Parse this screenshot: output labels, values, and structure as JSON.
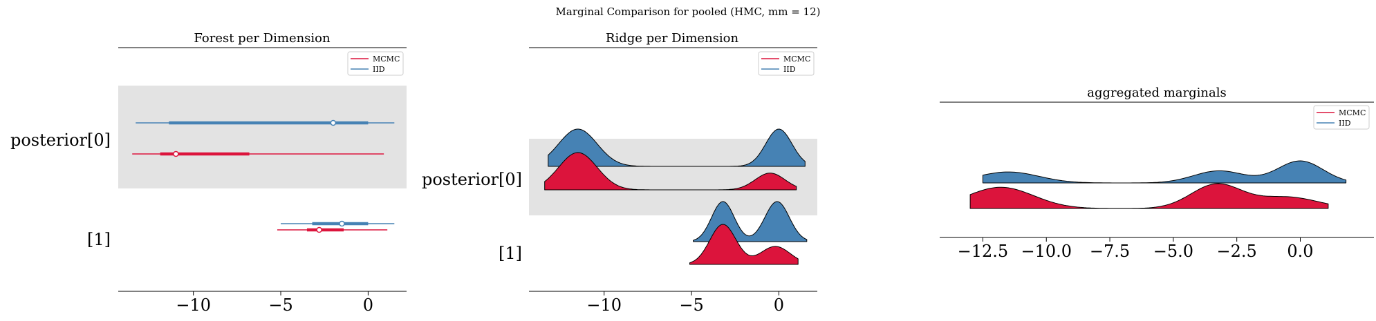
{
  "figure": {
    "suptitle": "Marginal Comparison for pooled (HMC, mm = 12)"
  },
  "colors": {
    "mcmc": "#dc143c",
    "iid": "#4682b4",
    "band": "#e3e3e3"
  },
  "legend": {
    "entries": [
      "MCMC",
      "IID"
    ]
  },
  "chart_data": [
    {
      "type": "forest",
      "title": "Forest per Dimension",
      "xlim": [
        -14.3,
        2.2
      ],
      "xticks": [
        -10,
        -5,
        0
      ],
      "tick_labels": [
        "−10",
        "−5",
        "0"
      ],
      "row_labels": [
        "posterior[0]",
        "[1]"
      ],
      "legend_placement": "top-right",
      "rows": [
        {
          "label": "posterior[0]",
          "series": [
            {
              "name": "IID",
              "whisker": [
                -13.3,
                1.5
              ],
              "iqr": [
                -11.4,
                0.0
              ],
              "median": -2.0
            },
            {
              "name": "MCMC",
              "whisker": [
                -13.5,
                0.9
              ],
              "iqr": [
                -11.9,
                -6.8
              ],
              "median": -11.0
            }
          ]
        },
        {
          "label": "[1]",
          "series": [
            {
              "name": "IID",
              "whisker": [
                -5.0,
                1.5
              ],
              "iqr": [
                -3.2,
                0.0
              ],
              "median": -1.5
            },
            {
              "name": "MCMC",
              "whisker": [
                -5.2,
                1.1
              ],
              "iqr": [
                -3.5,
                -1.4
              ],
              "median": -2.8
            }
          ]
        }
      ]
    },
    {
      "type": "ridge",
      "title": "Ridge per Dimension",
      "xlim": [
        -14.3,
        2.2
      ],
      "xticks": [
        -10,
        -5,
        0
      ],
      "tick_labels": [
        "−10",
        "−5",
        "0"
      ],
      "row_labels": [
        "posterior[0]",
        "[1]"
      ],
      "legend_placement": "top-right",
      "rows": [
        {
          "label": "posterior[0]",
          "series": [
            {
              "name": "IID",
              "range": [
                -13.2,
                1.5
              ],
              "peaks": [
                {
                  "mu": -11.5,
                  "sigma": 1.1,
                  "h": 1.0
                },
                {
                  "mu": 0.0,
                  "sigma": 0.75,
                  "h": 1.0
                }
              ]
            },
            {
              "name": "MCMC",
              "range": [
                -13.4,
                1.0
              ],
              "peaks": [
                {
                  "mu": -11.5,
                  "sigma": 1.1,
                  "h": 1.0
                },
                {
                  "mu": -0.5,
                  "sigma": 0.85,
                  "h": 0.45
                }
              ]
            }
          ]
        },
        {
          "label": "[1]",
          "series": [
            {
              "name": "IID",
              "range": [
                -4.9,
                1.6
              ],
              "peaks": [
                {
                  "mu": -3.2,
                  "sigma": 0.65,
                  "h": 1.0
                },
                {
                  "mu": -0.1,
                  "sigma": 0.7,
                  "h": 1.0
                }
              ]
            },
            {
              "name": "MCMC",
              "range": [
                -5.1,
                1.1
              ],
              "peaks": [
                {
                  "mu": -3.2,
                  "sigma": 0.75,
                  "h": 1.0
                },
                {
                  "mu": -0.2,
                  "sigma": 0.85,
                  "h": 0.45
                }
              ]
            }
          ]
        }
      ]
    },
    {
      "type": "area",
      "title": "aggregated marginals",
      "xlim": [
        -14.2,
        2.9
      ],
      "xticks": [
        -12.5,
        -10.0,
        -7.5,
        -5.0,
        -2.5,
        0.0
      ],
      "tick_labels": [
        "−12.5",
        "−10.0",
        "−7.5",
        "−5.0",
        "−2.5",
        "0.0"
      ],
      "legend_placement": "top-right",
      "series": [
        {
          "name": "IID",
          "range": [
            -12.5,
            1.8
          ],
          "peaks": [
            {
              "mu": -11.5,
              "sigma": 1.2,
              "h": 0.5
            },
            {
              "mu": -3.2,
              "sigma": 1.0,
              "h": 0.55
            },
            {
              "mu": 0.0,
              "sigma": 0.9,
              "h": 1.0
            }
          ]
        },
        {
          "name": "MCMC",
          "range": [
            -13.0,
            1.1
          ],
          "peaks": [
            {
              "mu": -11.8,
              "sigma": 1.3,
              "h": 0.75
            },
            {
              "mu": -3.3,
              "sigma": 1.0,
              "h": 0.85
            },
            {
              "mu": -0.5,
              "sigma": 1.2,
              "h": 0.4
            }
          ]
        }
      ]
    }
  ]
}
